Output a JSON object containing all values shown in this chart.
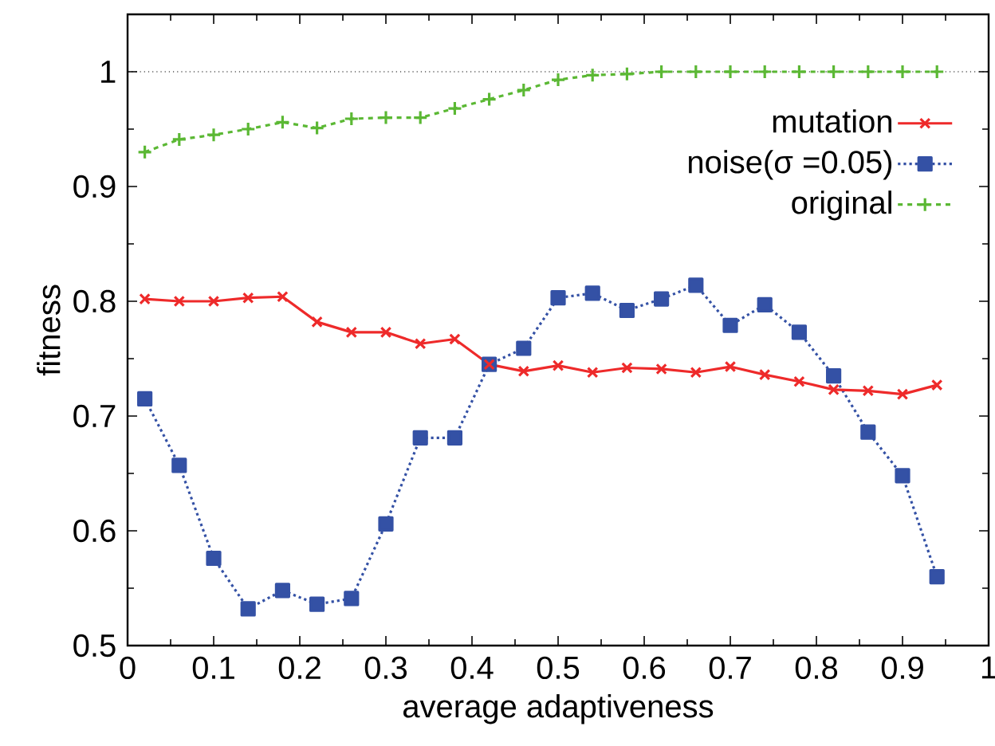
{
  "chart_data": {
    "type": "line",
    "xlabel": "average adaptiveness",
    "ylabel": "fitness",
    "x": [
      0.02,
      0.06,
      0.1,
      0.14,
      0.18,
      0.22,
      0.26,
      0.3,
      0.34,
      0.38,
      0.42,
      0.46,
      0.5,
      0.54,
      0.58,
      0.62,
      0.66,
      0.7,
      0.74,
      0.78,
      0.82,
      0.86,
      0.9,
      0.94
    ],
    "xlim": [
      0,
      1
    ],
    "xticks": [
      0,
      0.1,
      0.2,
      0.3,
      0.4,
      0.5,
      0.6,
      0.7,
      0.8,
      0.9,
      1
    ],
    "ylim": [
      0.5,
      1.05
    ],
    "yticks": [
      0.5,
      0.6,
      0.7,
      0.8,
      0.9,
      1
    ],
    "legend": "top right",
    "grid": false,
    "ref_lines": [
      {
        "axis": "y",
        "value": 1,
        "color": "#000000",
        "line_style": "dotted"
      }
    ],
    "series": [
      {
        "name": "mutation",
        "color": "#ee2a2a",
        "marker": "cross",
        "line_style": "solid",
        "values": [
          0.802,
          0.8,
          0.8,
          0.803,
          0.804,
          0.782,
          0.773,
          0.773,
          0.763,
          0.767,
          0.745,
          0.739,
          0.744,
          0.738,
          0.742,
          0.741,
          0.738,
          0.743,
          0.736,
          0.73,
          0.723,
          0.722,
          0.719,
          0.727
        ]
      },
      {
        "name": "noise(σ =0.05)",
        "color": "#3451a5",
        "marker": "square",
        "line_style": "dotted",
        "values": [
          0.715,
          0.657,
          0.576,
          0.532,
          0.548,
          0.536,
          0.541,
          0.606,
          0.681,
          0.681,
          0.745,
          0.759,
          0.803,
          0.807,
          0.792,
          0.802,
          0.814,
          0.779,
          0.797,
          0.773,
          0.735,
          0.686,
          0.648,
          0.56
        ]
      },
      {
        "name": "original",
        "color": "#5bb834",
        "marker": "plus",
        "line_style": "dashed",
        "values": [
          0.93,
          0.941,
          0.945,
          0.95,
          0.956,
          0.951,
          0.959,
          0.96,
          0.96,
          0.968,
          0.976,
          0.984,
          0.993,
          0.997,
          0.998,
          1.0,
          1.0,
          1.0,
          1.0,
          1.0,
          1.0,
          1.0,
          1.0,
          1.0
        ]
      }
    ]
  }
}
